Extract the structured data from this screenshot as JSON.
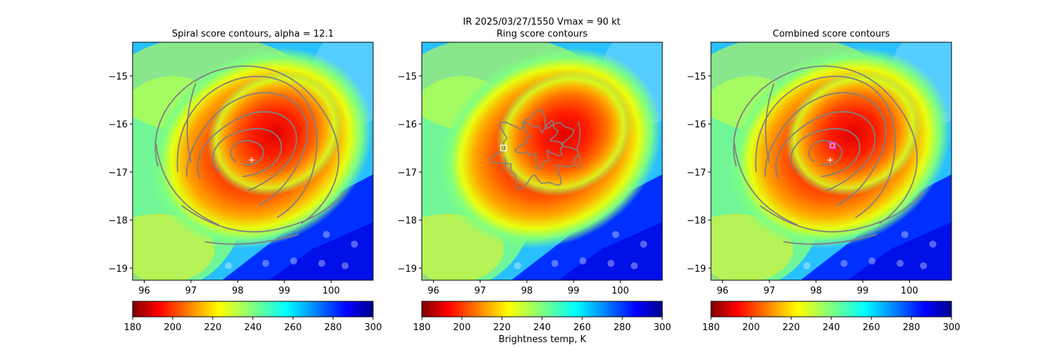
{
  "figure": {
    "suptitle_line1": "IR  2025/03/27/1550    Vmax = 90 kt",
    "colorbar_label": "Brightness temp, K"
  },
  "chart_data": [
    {
      "type": "heatmap",
      "title": "Spiral score contours, alpha = 12.1",
      "xlim": [
        95.75,
        100.9
      ],
      "ylim": [
        -19.25,
        -14.3
      ],
      "xticks": [
        96,
        97,
        98,
        99,
        100
      ],
      "yticks": [
        -15,
        -16,
        -17,
        -18,
        -19
      ],
      "overlay": "spiral",
      "storm_center": [
        98.3,
        -16.75
      ],
      "center_marker": "white-plus",
      "contour_color": "#808080"
    },
    {
      "type": "heatmap",
      "title": "Ring score contours",
      "xlim": [
        95.75,
        100.9
      ],
      "ylim": [
        -19.25,
        -14.3
      ],
      "xticks": [
        96,
        97,
        98,
        99,
        100
      ],
      "yticks": [
        -15,
        -16,
        -17,
        -18,
        -19
      ],
      "overlay": "ring",
      "storm_center": [
        98.3,
        -16.75
      ],
      "best_ring_center": [
        97.5,
        -16.5
      ],
      "ring_marker": "white-square",
      "contour_color": "#808080"
    },
    {
      "type": "heatmap",
      "title": "Combined score contours",
      "xlim": [
        95.75,
        100.9
      ],
      "ylim": [
        -19.25,
        -14.3
      ],
      "xticks": [
        96,
        97,
        98,
        99,
        100
      ],
      "yticks": [
        -15,
        -16,
        -17,
        -18,
        -19
      ],
      "overlay": "combined",
      "storm_center": [
        98.3,
        -16.75
      ],
      "best_center": [
        98.35,
        -16.45
      ],
      "center_marker": "white-plus",
      "best_marker": "magenta-square",
      "contour_color": "#808080"
    }
  ],
  "colorbar": {
    "cmap": "jet_r",
    "vmin": 180,
    "vmax": 300,
    "ticks": [
      180,
      200,
      220,
      240,
      260,
      280,
      300
    ]
  }
}
